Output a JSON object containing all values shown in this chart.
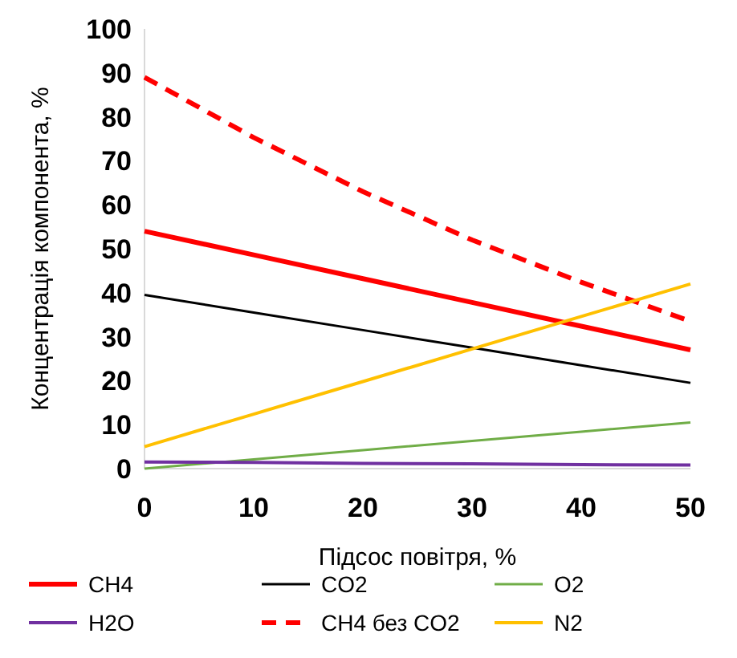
{
  "chart_data": {
    "type": "line",
    "xlabel": "Підсос повітря, %",
    "ylabel": "Концентрація компонента, %",
    "x": [
      0,
      10,
      20,
      30,
      40,
      50
    ],
    "xlim": [
      0,
      50
    ],
    "xticks": [
      0,
      10,
      20,
      30,
      40,
      50
    ],
    "ylim": [
      0,
      100
    ],
    "yticks": [
      0,
      10,
      20,
      30,
      40,
      50,
      60,
      70,
      80,
      90,
      100
    ],
    "grid": false,
    "legend": "bottom",
    "marker": "none",
    "series": [
      {
        "name": "CH4",
        "color": "#ff0000",
        "values": [
          54,
          48.6,
          43.2,
          37.8,
          32.4,
          27
        ]
      },
      {
        "name": "CO2",
        "color": "#000000",
        "values": [
          39.5,
          35.5,
          31.5,
          27.5,
          23.5,
          19.5
        ]
      },
      {
        "name": "O2",
        "color": "#70ad47",
        "values": [
          0,
          2.1,
          4.2,
          6.3,
          8.4,
          10.5
        ]
      },
      {
        "name": "H2O",
        "color": "#7030a0",
        "values": [
          1.5,
          1.4,
          1.2,
          1.1,
          0.9,
          0.8
        ]
      },
      {
        "name": "CH4 без CO2",
        "color": "#ff0000",
        "line_style": "dashed",
        "values": [
          89,
          75.3,
          63,
          52,
          42.4,
          33.5
        ]
      },
      {
        "name": "N2",
        "color": "#ffc000",
        "values": [
          5,
          12.4,
          19.8,
          27.2,
          34.6,
          42
        ]
      }
    ]
  }
}
